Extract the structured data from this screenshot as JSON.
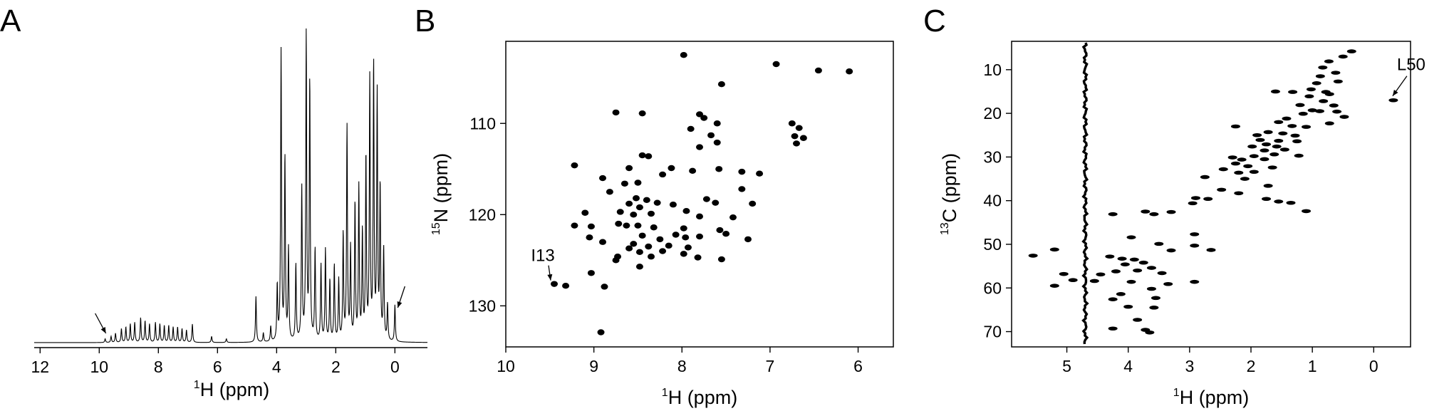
{
  "chart_data": [
    {
      "panel": "A",
      "type": "line",
      "xlabel_sup": "1",
      "xlabel": "H (ppm)",
      "xlim": [
        12.2,
        -1.1
      ],
      "x_reversed": true,
      "xticks": [
        12,
        10,
        8,
        6,
        4,
        2,
        0
      ],
      "arrows_at_ppm": [
        9.8,
        0.0
      ],
      "peaks": [
        {
          "x": 9.8,
          "y": 0.012
        },
        {
          "x": 9.6,
          "y": 0.02
        },
        {
          "x": 9.45,
          "y": 0.03
        },
        {
          "x": 9.25,
          "y": 0.045
        },
        {
          "x": 9.1,
          "y": 0.05
        },
        {
          "x": 8.95,
          "y": 0.06
        },
        {
          "x": 8.8,
          "y": 0.065
        },
        {
          "x": 8.6,
          "y": 0.08
        },
        {
          "x": 8.45,
          "y": 0.07
        },
        {
          "x": 8.3,
          "y": 0.06
        },
        {
          "x": 8.1,
          "y": 0.065
        },
        {
          "x": 7.95,
          "y": 0.06
        },
        {
          "x": 7.8,
          "y": 0.055
        },
        {
          "x": 7.65,
          "y": 0.055
        },
        {
          "x": 7.5,
          "y": 0.05
        },
        {
          "x": 7.35,
          "y": 0.05
        },
        {
          "x": 7.2,
          "y": 0.045
        },
        {
          "x": 7.05,
          "y": 0.04
        },
        {
          "x": 6.85,
          "y": 0.06
        },
        {
          "x": 6.2,
          "y": 0.02
        },
        {
          "x": 5.7,
          "y": 0.012
        },
        {
          "x": 4.7,
          "y": 0.15
        },
        {
          "x": 4.45,
          "y": 0.03
        },
        {
          "x": 4.2,
          "y": 0.05
        },
        {
          "x": 3.98,
          "y": 0.18
        },
        {
          "x": 3.85,
          "y": 0.95
        },
        {
          "x": 3.72,
          "y": 0.6
        },
        {
          "x": 3.6,
          "y": 0.3
        },
        {
          "x": 3.35,
          "y": 0.25
        },
        {
          "x": 3.15,
          "y": 0.5
        },
        {
          "x": 3.0,
          "y": 1.0
        },
        {
          "x": 2.88,
          "y": 0.85
        },
        {
          "x": 2.7,
          "y": 0.3
        },
        {
          "x": 2.5,
          "y": 0.25
        },
        {
          "x": 2.35,
          "y": 0.3
        },
        {
          "x": 2.2,
          "y": 0.2
        },
        {
          "x": 2.05,
          "y": 0.25
        },
        {
          "x": 1.9,
          "y": 0.2
        },
        {
          "x": 1.75,
          "y": 0.35
        },
        {
          "x": 1.62,
          "y": 0.7
        },
        {
          "x": 1.5,
          "y": 0.3
        },
        {
          "x": 1.35,
          "y": 0.45
        },
        {
          "x": 1.22,
          "y": 0.5
        },
        {
          "x": 1.1,
          "y": 0.35
        },
        {
          "x": 0.98,
          "y": 0.6
        },
        {
          "x": 0.85,
          "y": 0.85
        },
        {
          "x": 0.72,
          "y": 0.9
        },
        {
          "x": 0.6,
          "y": 0.8
        },
        {
          "x": 0.5,
          "y": 0.5
        },
        {
          "x": 0.38,
          "y": 0.3
        },
        {
          "x": 0.25,
          "y": 0.12
        },
        {
          "x": 0.0,
          "y": 0.12
        }
      ]
    },
    {
      "panel": "B",
      "type": "scatter",
      "xlabel_sup": "1",
      "xlabel": "H (ppm)",
      "ylabel_sup": "15",
      "ylabel": "N (ppm)",
      "xlim": [
        10.0,
        5.6
      ],
      "ylim": [
        101.0,
        134.5
      ],
      "x_reversed": true,
      "y_reversed": true,
      "xticks": [
        10,
        9,
        8,
        7,
        6
      ],
      "yticks": [
        110,
        120,
        130
      ],
      "annotation": {
        "label": "I13",
        "x": 9.45,
        "y": 127.6
      },
      "points": [
        {
          "x": 7.98,
          "y": 102.5
        },
        {
          "x": 6.93,
          "y": 103.5
        },
        {
          "x": 6.45,
          "y": 104.2
        },
        {
          "x": 6.1,
          "y": 104.3
        },
        {
          "x": 7.55,
          "y": 105.7
        },
        {
          "x": 8.75,
          "y": 108.8
        },
        {
          "x": 8.45,
          "y": 108.9
        },
        {
          "x": 7.8,
          "y": 109.0
        },
        {
          "x": 7.75,
          "y": 109.4
        },
        {
          "x": 7.6,
          "y": 110.0
        },
        {
          "x": 6.75,
          "y": 110.0
        },
        {
          "x": 6.67,
          "y": 110.5
        },
        {
          "x": 7.9,
          "y": 110.6
        },
        {
          "x": 7.67,
          "y": 111.3
        },
        {
          "x": 6.72,
          "y": 111.4
        },
        {
          "x": 6.62,
          "y": 111.6
        },
        {
          "x": 6.7,
          "y": 112.2
        },
        {
          "x": 7.6,
          "y": 112.1
        },
        {
          "x": 7.8,
          "y": 112.6
        },
        {
          "x": 8.45,
          "y": 113.5
        },
        {
          "x": 8.38,
          "y": 113.6
        },
        {
          "x": 9.22,
          "y": 114.6
        },
        {
          "x": 8.6,
          "y": 114.9
        },
        {
          "x": 8.12,
          "y": 114.9
        },
        {
          "x": 7.88,
          "y": 115.2
        },
        {
          "x": 7.58,
          "y": 115.0
        },
        {
          "x": 8.22,
          "y": 115.6
        },
        {
          "x": 8.9,
          "y": 116.0
        },
        {
          "x": 7.32,
          "y": 115.3
        },
        {
          "x": 7.12,
          "y": 115.5
        },
        {
          "x": 8.5,
          "y": 116.5
        },
        {
          "x": 8.65,
          "y": 116.6
        },
        {
          "x": 7.32,
          "y": 117.2
        },
        {
          "x": 8.82,
          "y": 117.5
        },
        {
          "x": 8.52,
          "y": 118.2
        },
        {
          "x": 8.4,
          "y": 118.4
        },
        {
          "x": 8.6,
          "y": 118.8
        },
        {
          "x": 8.48,
          "y": 119.2
        },
        {
          "x": 8.28,
          "y": 118.7
        },
        {
          "x": 8.1,
          "y": 118.9
        },
        {
          "x": 7.72,
          "y": 118.3
        },
        {
          "x": 7.62,
          "y": 118.7
        },
        {
          "x": 7.2,
          "y": 118.8
        },
        {
          "x": 9.1,
          "y": 119.8
        },
        {
          "x": 8.7,
          "y": 119.7
        },
        {
          "x": 8.55,
          "y": 120.0
        },
        {
          "x": 8.35,
          "y": 119.9
        },
        {
          "x": 7.95,
          "y": 119.6
        },
        {
          "x": 7.8,
          "y": 120.2
        },
        {
          "x": 7.42,
          "y": 120.3
        },
        {
          "x": 9.22,
          "y": 121.2
        },
        {
          "x": 9.03,
          "y": 121.3
        },
        {
          "x": 8.72,
          "y": 121.0
        },
        {
          "x": 8.63,
          "y": 121.2
        },
        {
          "x": 8.5,
          "y": 121.2
        },
        {
          "x": 8.32,
          "y": 121.4
        },
        {
          "x": 7.98,
          "y": 121.5
        },
        {
          "x": 7.57,
          "y": 121.7
        },
        {
          "x": 9.05,
          "y": 122.5
        },
        {
          "x": 8.45,
          "y": 122.3
        },
        {
          "x": 8.07,
          "y": 122.2
        },
        {
          "x": 7.96,
          "y": 122.5
        },
        {
          "x": 7.8,
          "y": 122.4
        },
        {
          "x": 8.25,
          "y": 122.7
        },
        {
          "x": 7.5,
          "y": 122.1
        },
        {
          "x": 7.25,
          "y": 122.7
        },
        {
          "x": 8.9,
          "y": 123.0
        },
        {
          "x": 8.55,
          "y": 123.2
        },
        {
          "x": 8.38,
          "y": 123.5
        },
        {
          "x": 8.6,
          "y": 123.7
        },
        {
          "x": 8.15,
          "y": 123.4
        },
        {
          "x": 7.93,
          "y": 123.6
        },
        {
          "x": 8.48,
          "y": 124.1
        },
        {
          "x": 8.22,
          "y": 124.0
        },
        {
          "x": 7.98,
          "y": 124.3
        },
        {
          "x": 8.73,
          "y": 124.6
        },
        {
          "x": 8.35,
          "y": 124.6
        },
        {
          "x": 7.82,
          "y": 124.7
        },
        {
          "x": 7.55,
          "y": 124.9
        },
        {
          "x": 8.75,
          "y": 125.0
        },
        {
          "x": 8.48,
          "y": 125.7
        },
        {
          "x": 9.03,
          "y": 126.4
        },
        {
          "x": 9.45,
          "y": 127.6
        },
        {
          "x": 9.32,
          "y": 127.8
        },
        {
          "x": 8.88,
          "y": 127.9
        },
        {
          "x": 8.92,
          "y": 132.9
        }
      ]
    },
    {
      "panel": "C",
      "type": "scatter",
      "xlabel_sup": "1",
      "xlabel": "H (ppm)",
      "ylabel_sup": "13",
      "ylabel": "C (ppm)",
      "xlim": [
        5.9,
        -0.6
      ],
      "ylim": [
        3.5,
        73.5
      ],
      "x_reversed": true,
      "y_reversed": true,
      "xticks": [
        5,
        4,
        3,
        2,
        1,
        0
      ],
      "yticks": [
        10,
        20,
        30,
        40,
        50,
        60,
        70
      ],
      "water_ridge_ppm": 4.7,
      "annotation": {
        "label": "L50",
        "x": -0.32,
        "y": 17.0
      },
      "points": [
        {
          "x": 0.36,
          "y": 5.8
        },
        {
          "x": 0.5,
          "y": 7.0
        },
        {
          "x": 0.73,
          "y": 8.1
        },
        {
          "x": 0.83,
          "y": 9.5
        },
        {
          "x": 0.62,
          "y": 10.7
        },
        {
          "x": 0.87,
          "y": 11.5
        },
        {
          "x": 0.58,
          "y": 12.7
        },
        {
          "x": 0.93,
          "y": 13.1
        },
        {
          "x": 1.02,
          "y": 14.5
        },
        {
          "x": 0.78,
          "y": 15.1
        },
        {
          "x": 1.6,
          "y": 15.0
        },
        {
          "x": 1.32,
          "y": 15.1
        },
        {
          "x": 0.72,
          "y": 15.6
        },
        {
          "x": 1.05,
          "y": 16.1
        },
        {
          "x": 0.82,
          "y": 17.2
        },
        {
          "x": -0.32,
          "y": 17.0
        },
        {
          "x": 1.2,
          "y": 18.1
        },
        {
          "x": 0.65,
          "y": 18.2
        },
        {
          "x": 1.0,
          "y": 19.3
        },
        {
          "x": 0.88,
          "y": 19.5
        },
        {
          "x": 0.6,
          "y": 19.6
        },
        {
          "x": 1.15,
          "y": 20.1
        },
        {
          "x": 0.48,
          "y": 20.8
        },
        {
          "x": 1.42,
          "y": 21.2
        },
        {
          "x": 1.55,
          "y": 22.0
        },
        {
          "x": 0.72,
          "y": 22.3
        },
        {
          "x": 1.33,
          "y": 22.9
        },
        {
          "x": 1.1,
          "y": 23.1
        },
        {
          "x": 2.25,
          "y": 23.0
        },
        {
          "x": 1.72,
          "y": 24.3
        },
        {
          "x": 1.48,
          "y": 24.6
        },
        {
          "x": 1.9,
          "y": 25.0
        },
        {
          "x": 1.28,
          "y": 25.1
        },
        {
          "x": 1.85,
          "y": 26.1
        },
        {
          "x": 1.55,
          "y": 26.3
        },
        {
          "x": 1.25,
          "y": 26.4
        },
        {
          "x": 1.75,
          "y": 27.1
        },
        {
          "x": 1.58,
          "y": 27.6
        },
        {
          "x": 1.98,
          "y": 27.6
        },
        {
          "x": 1.78,
          "y": 28.5
        },
        {
          "x": 1.45,
          "y": 28.3
        },
        {
          "x": 1.62,
          "y": 29.4
        },
        {
          "x": 1.95,
          "y": 29.8
        },
        {
          "x": 1.22,
          "y": 29.7
        },
        {
          "x": 2.3,
          "y": 30.1
        },
        {
          "x": 2.15,
          "y": 30.6
        },
        {
          "x": 1.78,
          "y": 30.5
        },
        {
          "x": 2.25,
          "y": 31.5
        },
        {
          "x": 2.05,
          "y": 32.1
        },
        {
          "x": 1.65,
          "y": 32.4
        },
        {
          "x": 2.45,
          "y": 32.8
        },
        {
          "x": 2.2,
          "y": 33.6
        },
        {
          "x": 1.95,
          "y": 33.4
        },
        {
          "x": 2.75,
          "y": 34.6
        },
        {
          "x": 2.1,
          "y": 35.0
        },
        {
          "x": 1.72,
          "y": 36.6
        },
        {
          "x": 2.48,
          "y": 37.5
        },
        {
          "x": 2.2,
          "y": 38.3
        },
        {
          "x": 2.9,
          "y": 39.4
        },
        {
          "x": 2.7,
          "y": 39.6
        },
        {
          "x": 2.95,
          "y": 40.6
        },
        {
          "x": 1.75,
          "y": 39.6
        },
        {
          "x": 1.55,
          "y": 40.2
        },
        {
          "x": 1.35,
          "y": 40.5
        },
        {
          "x": 1.1,
          "y": 42.4
        },
        {
          "x": 3.72,
          "y": 42.5
        },
        {
          "x": 3.3,
          "y": 42.6
        },
        {
          "x": 3.58,
          "y": 43.1
        },
        {
          "x": 4.25,
          "y": 43.1
        },
        {
          "x": 2.92,
          "y": 47.7
        },
        {
          "x": 3.95,
          "y": 48.4
        },
        {
          "x": 3.5,
          "y": 49.9
        },
        {
          "x": 2.92,
          "y": 50.3
        },
        {
          "x": 3.3,
          "y": 51.4
        },
        {
          "x": 2.65,
          "y": 51.3
        },
        {
          "x": 5.2,
          "y": 51.2
        },
        {
          "x": 5.55,
          "y": 52.6
        },
        {
          "x": 4.3,
          "y": 52.8
        },
        {
          "x": 4.1,
          "y": 53.3
        },
        {
          "x": 3.9,
          "y": 53.5
        },
        {
          "x": 3.75,
          "y": 54.2
        },
        {
          "x": 4.05,
          "y": 54.6
        },
        {
          "x": 3.62,
          "y": 55.4
        },
        {
          "x": 3.85,
          "y": 56.0
        },
        {
          "x": 4.2,
          "y": 56.2
        },
        {
          "x": 3.45,
          "y": 56.6
        },
        {
          "x": 4.45,
          "y": 56.9
        },
        {
          "x": 5.05,
          "y": 56.8
        },
        {
          "x": 4.9,
          "y": 58.2
        },
        {
          "x": 4.55,
          "y": 58.4
        },
        {
          "x": 3.95,
          "y": 58.6
        },
        {
          "x": 3.35,
          "y": 59.1
        },
        {
          "x": 2.92,
          "y": 58.6
        },
        {
          "x": 5.2,
          "y": 59.5
        },
        {
          "x": 3.62,
          "y": 60.2
        },
        {
          "x": 4.12,
          "y": 61.4
        },
        {
          "x": 4.25,
          "y": 62.6
        },
        {
          "x": 3.55,
          "y": 62.3
        },
        {
          "x": 4.0,
          "y": 64.3
        },
        {
          "x": 3.58,
          "y": 64.5
        },
        {
          "x": 3.85,
          "y": 67.3
        },
        {
          "x": 4.25,
          "y": 69.3
        },
        {
          "x": 3.65,
          "y": 70.2
        },
        {
          "x": 3.72,
          "y": 69.6
        }
      ]
    }
  ],
  "panels": {
    "a_letter": "A",
    "b_letter": "B",
    "c_letter": "C"
  }
}
